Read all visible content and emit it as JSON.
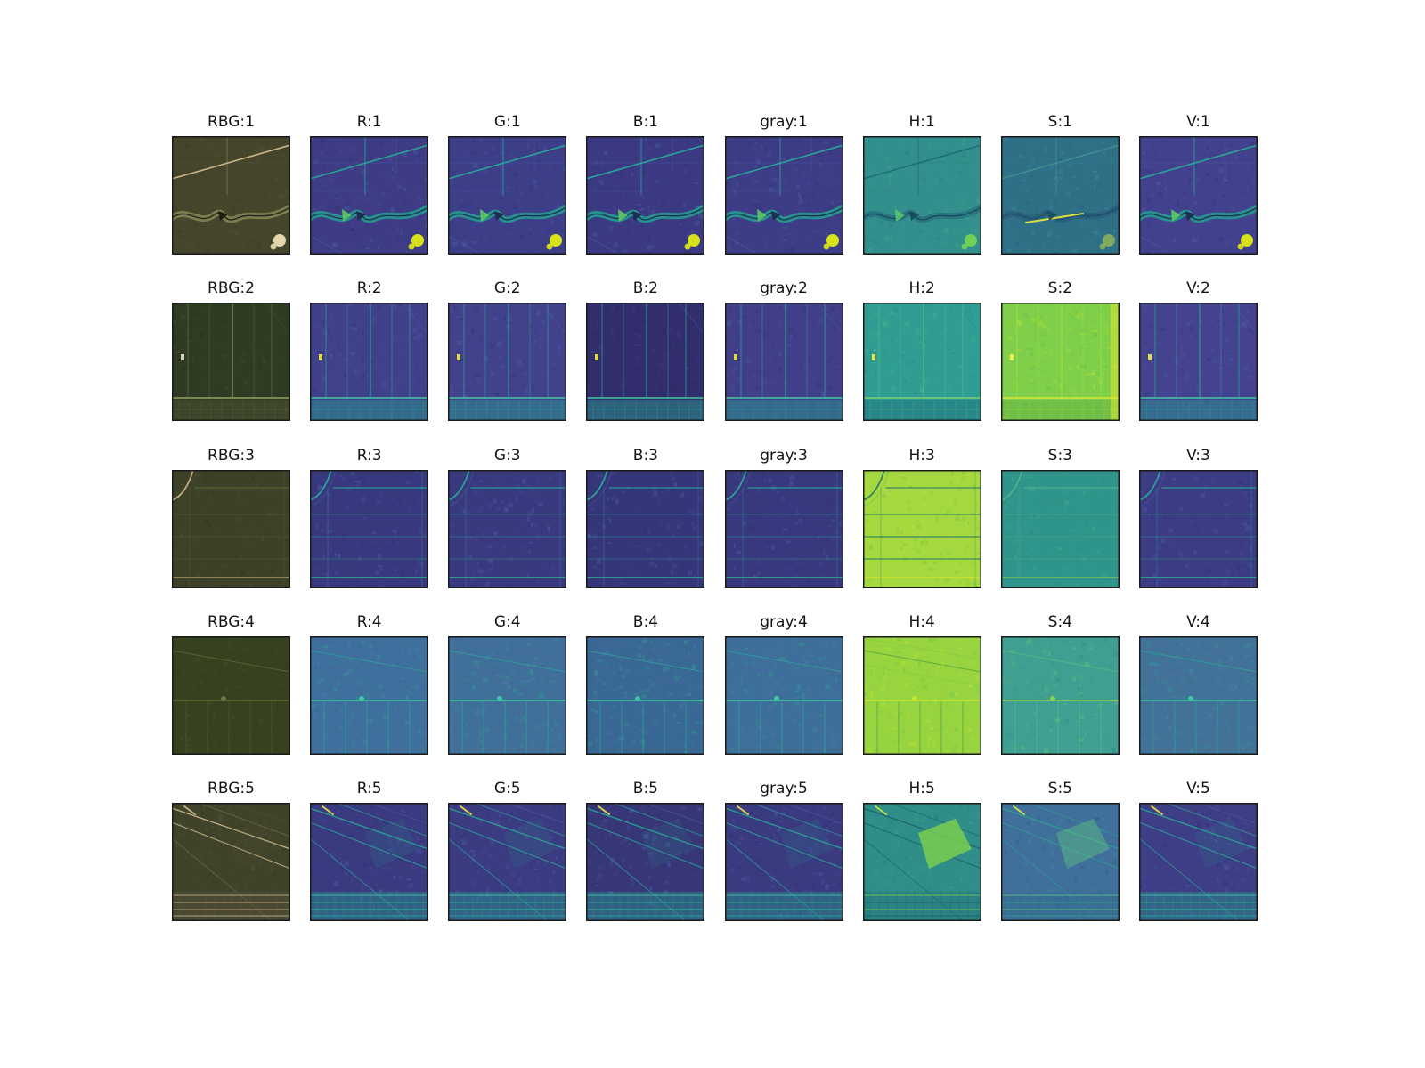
{
  "figure": {
    "background": "#ffffff",
    "channels": [
      "RBG",
      "R",
      "G",
      "B",
      "gray",
      "H",
      "S",
      "V"
    ],
    "rows": [
      {
        "index": 1,
        "labels": [
          "RBG:1",
          "R:1",
          "G:1",
          "B:1",
          "gray:1",
          "H:1",
          "S:1",
          "V:1"
        ]
      },
      {
        "index": 2,
        "labels": [
          "RBG:2",
          "R:2",
          "G:2",
          "B:2",
          "gray:2",
          "H:2",
          "S:2",
          "V:2"
        ]
      },
      {
        "index": 3,
        "labels": [
          "RBG:3",
          "R:3",
          "G:3",
          "B:3",
          "gray:3",
          "H:3",
          "S:3",
          "V:3"
        ]
      },
      {
        "index": 4,
        "labels": [
          "RBG:4",
          "R:4",
          "G:4",
          "B:4",
          "gray:4",
          "H:4",
          "S:4",
          "V:4"
        ]
      },
      {
        "index": 5,
        "labels": [
          "RBG:5",
          "R:5",
          "G:5",
          "B:5",
          "gray:5",
          "H:5",
          "S:5",
          "V:5"
        ]
      }
    ]
  },
  "chart_data": {
    "type": "heatmap",
    "title": "",
    "description": "5x8 grid of aerial farmland image patches: true-color RBG patch plus single-channel visualizations (R, G, B, gray, H, S, V) rendered in a viridis-style colormap for samples 1 through 5.",
    "columns": [
      "RBG",
      "R",
      "G",
      "B",
      "gray",
      "H",
      "S",
      "V"
    ],
    "rows": [
      "1",
      "2",
      "3",
      "4",
      "5"
    ],
    "cell_titles": [
      [
        "RBG:1",
        "R:1",
        "G:1",
        "B:1",
        "gray:1",
        "H:1",
        "S:1",
        "V:1"
      ],
      [
        "RBG:2",
        "R:2",
        "G:2",
        "B:2",
        "gray:2",
        "H:2",
        "S:2",
        "V:2"
      ],
      [
        "RBG:3",
        "R:3",
        "G:3",
        "B:3",
        "gray:3",
        "H:3",
        "S:3",
        "V:3"
      ],
      [
        "RBG:4",
        "R:4",
        "G:4",
        "B:4",
        "gray:4",
        "H:4",
        "S:4",
        "V:4"
      ],
      [
        "RBG:5",
        "R:5",
        "G:5",
        "B:5",
        "gray:5",
        "H:5",
        "S:5",
        "V:5"
      ]
    ],
    "colormap_colors": {
      "low": "#3d3c85",
      "mid": "#27958f",
      "high": "#d8e219"
    },
    "legend_position": "none",
    "grid": "off"
  }
}
